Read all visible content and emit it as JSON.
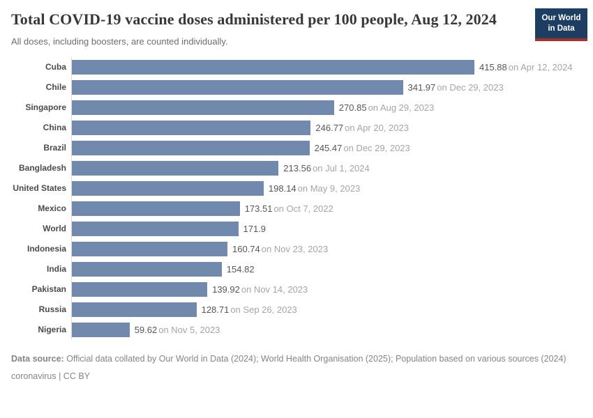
{
  "logo": {
    "line1": "Our World",
    "line2": "in Data"
  },
  "chart_data": {
    "type": "bar",
    "orientation": "horizontal",
    "title": "Total COVID-19 vaccine doses administered per 100 people, Aug 12, 2024",
    "subtitle": "All doses, including boosters, are counted individually.",
    "categories": [
      "Cuba",
      "Chile",
      "Singapore",
      "China",
      "Brazil",
      "Bangladesh",
      "United States",
      "Mexico",
      "World",
      "Indonesia",
      "India",
      "Pakistan",
      "Russia",
      "Nigeria"
    ],
    "values": [
      415.88,
      341.97,
      270.85,
      246.77,
      245.47,
      213.56,
      198.14,
      173.51,
      171.9,
      160.74,
      154.82,
      139.92,
      128.71,
      59.62
    ],
    "value_labels": [
      "415.88",
      "341.97",
      "270.85",
      "246.77",
      "245.47",
      "213.56",
      "198.14",
      "173.51",
      "171.9",
      "160.74",
      "154.82",
      "139.92",
      "128.71",
      "59.62"
    ],
    "date_labels": [
      "on Apr 12, 2024",
      "on Dec 29, 2023",
      "on Aug 29, 2023",
      "on Apr 20, 2023",
      "on Dec 29, 2023",
      "on Jul 1, 2024",
      "on May 9, 2023",
      "on Oct 7, 2022",
      "",
      "on Nov 23, 2023",
      "",
      "on Nov 14, 2023",
      "on Sep 26, 2023",
      "on Nov 5, 2023"
    ],
    "xlim": [
      0,
      415.88
    ],
    "bar_color": "#7189ad",
    "axis_line_color": "#dcdcdc",
    "grid": false,
    "legend": "none"
  },
  "footer": {
    "source_label": "Data source:",
    "source_text": " Official data collated by Our World in Data (2024); World Health Organisation (2025); Population based on various sources (2024)",
    "note": "coronavirus | CC BY"
  }
}
